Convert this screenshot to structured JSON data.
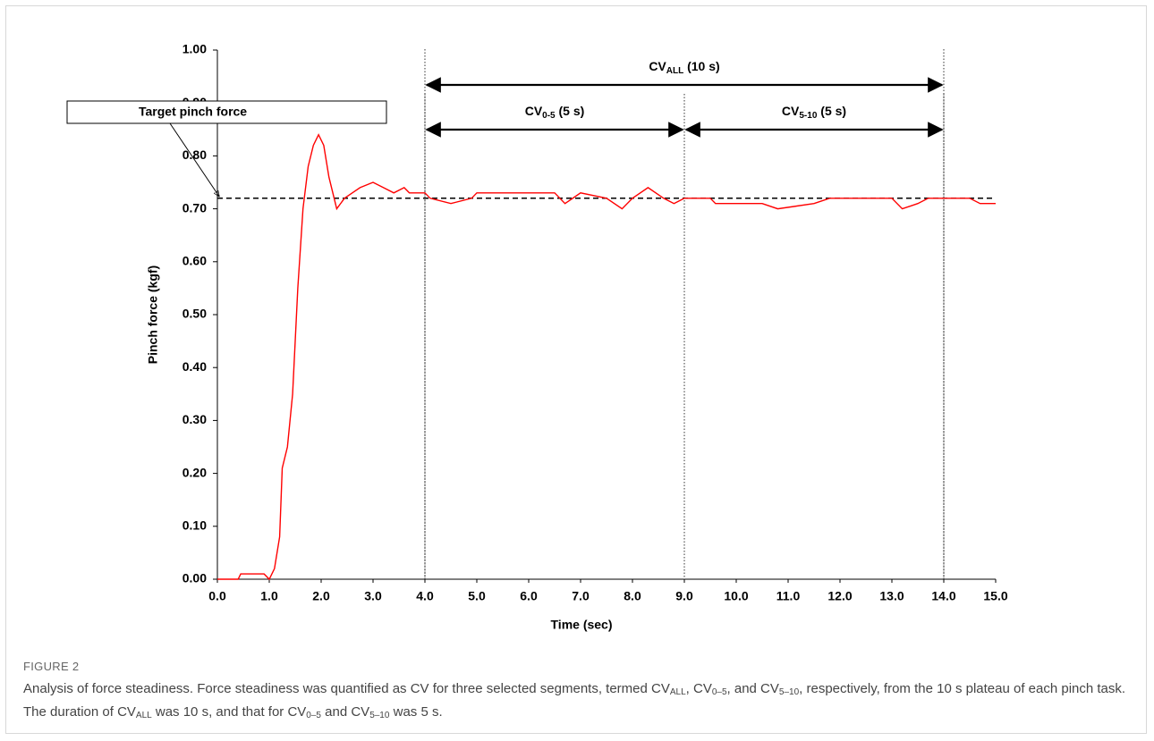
{
  "chart_data": {
    "type": "line",
    "ylabel": "Pinch force (kgf)",
    "xlabel": "Time (sec)",
    "xlim": [
      0,
      15
    ],
    "ylim": [
      0,
      1
    ],
    "xticks": [
      {
        "value": 0,
        "label": "0.0"
      },
      {
        "value": 1,
        "label": "1.0"
      },
      {
        "value": 2,
        "label": "2.0"
      },
      {
        "value": 3,
        "label": "3.0"
      },
      {
        "value": 4,
        "label": "4.0"
      },
      {
        "value": 5,
        "label": "5.0"
      },
      {
        "value": 6,
        "label": "6.0"
      },
      {
        "value": 7,
        "label": "7.0"
      },
      {
        "value": 8,
        "label": "8.0"
      },
      {
        "value": 9,
        "label": "9.0"
      },
      {
        "value": 10,
        "label": "10.0"
      },
      {
        "value": 11,
        "label": "11.0"
      },
      {
        "value": 12,
        "label": "12.0"
      },
      {
        "value": 13,
        "label": "13.0"
      },
      {
        "value": 14,
        "label": "14.0"
      },
      {
        "value": 15,
        "label": "15.0"
      }
    ],
    "yticks": [
      {
        "value": 0,
        "label": "0.00"
      },
      {
        "value": 0.1,
        "label": "0.10"
      },
      {
        "value": 0.2,
        "label": "0.20"
      },
      {
        "value": 0.3,
        "label": "0.30"
      },
      {
        "value": 0.4,
        "label": "0.40"
      },
      {
        "value": 0.5,
        "label": "0.50"
      },
      {
        "value": 0.6,
        "label": "0.60"
      },
      {
        "value": 0.7,
        "label": "0.70"
      },
      {
        "value": 0.8,
        "label": "0.80"
      },
      {
        "value": 0.9,
        "label": "0.90"
      },
      {
        "value": 1,
        "label": "1.00"
      }
    ],
    "color": "#ff0000",
    "x": [
      0,
      0.4,
      0.45,
      0.9,
      1.0,
      1.1,
      1.2,
      1.25,
      1.35,
      1.45,
      1.55,
      1.65,
      1.75,
      1.85,
      1.95,
      2.05,
      2.15,
      2.3,
      2.45,
      2.6,
      2.75,
      3.0,
      3.2,
      3.4,
      3.6,
      3.7,
      4.0,
      4.1,
      4.5,
      4.9,
      5.0,
      6.5,
      6.7,
      7.0,
      7.5,
      7.8,
      8.0,
      8.3,
      8.6,
      8.8,
      9.0,
      9.5,
      9.6,
      10.5,
      10.8,
      11.5,
      11.8,
      13.0,
      13.2,
      13.5,
      13.7,
      14.5,
      14.7,
      15.0
    ],
    "values": [
      0,
      0,
      0.01,
      0.01,
      0,
      0.02,
      0.08,
      0.21,
      0.25,
      0.35,
      0.55,
      0.7,
      0.78,
      0.82,
      0.84,
      0.82,
      0.76,
      0.7,
      0.72,
      0.73,
      0.74,
      0.75,
      0.74,
      0.73,
      0.74,
      0.73,
      0.73,
      0.72,
      0.71,
      0.72,
      0.73,
      0.73,
      0.71,
      0.73,
      0.72,
      0.7,
      0.72,
      0.74,
      0.72,
      0.71,
      0.72,
      0.72,
      0.71,
      0.71,
      0.7,
      0.71,
      0.72,
      0.72,
      0.7,
      0.71,
      0.72,
      0.72,
      0.71,
      0.71
    ],
    "target": {
      "label": "Target pinch force",
      "value": 0.72
    },
    "segments": [
      {
        "name": "CV",
        "sub": "ALL",
        "suffix": " (10 s)",
        "start": 4,
        "end": 14
      },
      {
        "name": "CV",
        "sub": "0-5",
        "suffix": " (5 s)",
        "start": 4,
        "end": 9
      },
      {
        "name": "CV",
        "sub": "5-10",
        "suffix": " (5 s)",
        "start": 9,
        "end": 14
      }
    ]
  },
  "figure_label": "FIGURE 2",
  "caption": [
    {
      "text": "Analysis of force steadiness. Force steadiness was quantified as CV for three selected segments, termed CV"
    },
    {
      "text": "ALL",
      "sub": true
    },
    {
      "text": ", CV"
    },
    {
      "text": "0–5",
      "sub": true
    },
    {
      "text": ", and CV"
    },
    {
      "text": "5–10",
      "sub": true
    },
    {
      "text": ", respectively, from the 10 s plateau of each pinch task. The duration of CV"
    },
    {
      "text": "ALL",
      "sub": true
    },
    {
      "text": " was 10 s, and that for CV"
    },
    {
      "text": "0–5",
      "sub": true
    },
    {
      "text": " and CV"
    },
    {
      "text": "5–10",
      "sub": true
    },
    {
      "text": " was 5 s."
    }
  ]
}
